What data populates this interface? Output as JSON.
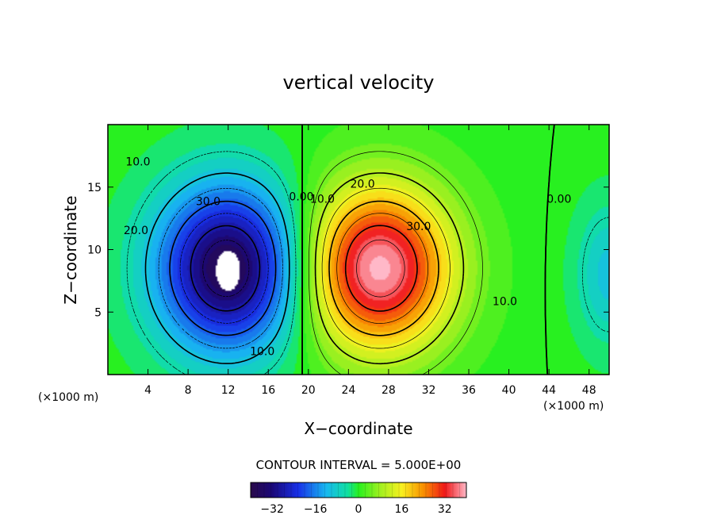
{
  "chart_data": {
    "type": "heatmap",
    "title": "vertical velocity",
    "xlabel": "X−coordinate",
    "ylabel": "Z−coordinate",
    "x_unit_label": "(×1000 m)",
    "xlim": [
      0,
      50
    ],
    "ylim": [
      0,
      20
    ],
    "x_ticks": [
      "4",
      "8",
      "12",
      "16",
      "20",
      "24",
      "28",
      "32",
      "36",
      "40",
      "44",
      "48"
    ],
    "y_ticks": [
      "5",
      "10",
      "15"
    ],
    "contour_interval_text": "CONTOUR INTERVAL = 5.000E+00",
    "contour_interval": 5,
    "colorbar": {
      "range": [
        -40,
        40
      ],
      "ticks": [
        "−32",
        "−16",
        "0",
        "16",
        "32"
      ]
    },
    "field": {
      "cells": [
        {
          "name": "downdraft",
          "center_x": 12,
          "center_z": 8.5,
          "peak": -40
        },
        {
          "name": "updraft",
          "center_x": 27,
          "center_z": 8.5,
          "peak": 40
        },
        {
          "name": "right-downdraft",
          "center_x": 50,
          "center_z": 8,
          "peak": -10
        }
      ],
      "missing_region": {
        "center_x": 12,
        "center_z": 8.3
      }
    },
    "contour_labels": [
      {
        "text": "10.0",
        "x": 3.0,
        "z": 17.0
      },
      {
        "text": "20.0",
        "x": 2.8,
        "z": 11.5
      },
      {
        "text": "30.0",
        "x": 10.0,
        "z": 13.8
      },
      {
        "text": "10.0",
        "x": 15.4,
        "z": 1.8
      },
      {
        "text": "0.00",
        "x": 19.3,
        "z": 14.2
      },
      {
        "text": "10.0",
        "x": 21.4,
        "z": 14.0
      },
      {
        "text": "20.0",
        "x": 25.4,
        "z": 15.2
      },
      {
        "text": "30.0",
        "x": 31.0,
        "z": 11.8
      },
      {
        "text": "10.0",
        "x": 39.6,
        "z": 5.8
      },
      {
        "text": "0.00",
        "x": 45.0,
        "z": 14.0
      }
    ]
  }
}
